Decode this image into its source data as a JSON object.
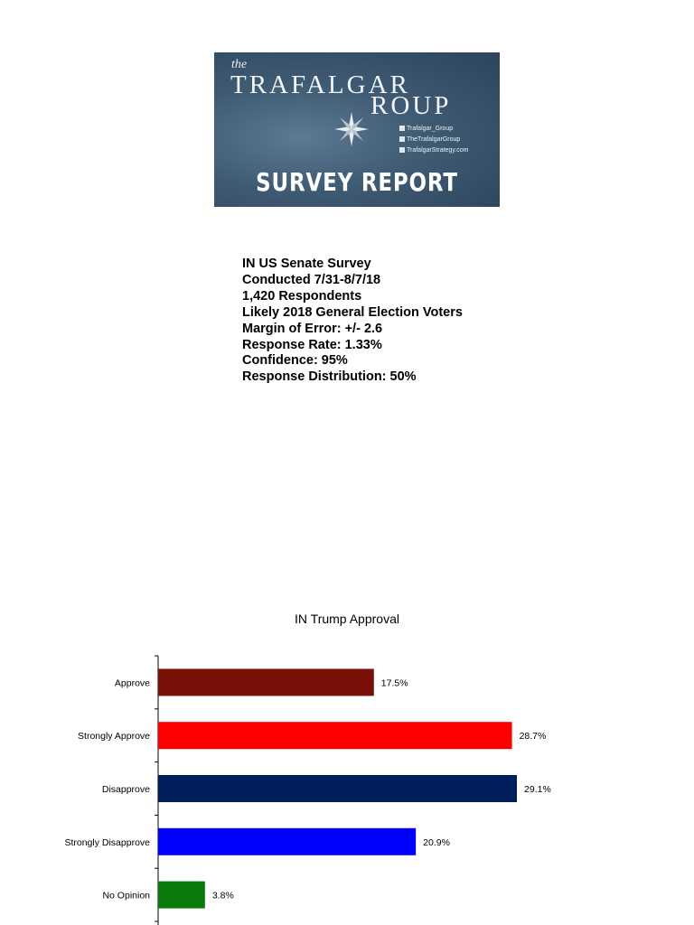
{
  "banner": {
    "the": "the",
    "brand_line1": "TRAFALGAR",
    "brand_line2": "ROUP",
    "social": [
      "Trafalgar_Group",
      "TheTrafalgarGroup",
      "TrafalgarStrategy.com"
    ],
    "report_label": "SURVEY REPORT"
  },
  "survey_info": [
    "IN US Senate Survey",
    "Conducted 7/31-8/7/18",
    "1,420 Respondents",
    "Likely 2018 General Election Voters",
    "Margin of Error: +/- 2.6",
    "Response Rate: 1.33%",
    "Confidence: 95%",
    "Response Distribution: 50%"
  ],
  "colors": {
    "approve": "#7a0f08",
    "strongly_approve": "#ff0000",
    "disapprove": "#001e5c",
    "strongly_disapprove": "#0000ff",
    "no_opinion": "#0a7a0a"
  },
  "chart_data": {
    "type": "bar",
    "orientation": "horizontal",
    "title": "IN Trump Approval",
    "categories": [
      "Approve",
      "Strongly Approve",
      "Disapprove",
      "Strongly Disapprove",
      "No Opinion"
    ],
    "values": [
      17.5,
      28.7,
      29.1,
      20.9,
      3.8
    ],
    "labels": [
      "17.5%",
      "28.7%",
      "29.1%",
      "20.9%",
      "3.8%"
    ],
    "colors": [
      "#7a0f08",
      "#ff0000",
      "#001e5c",
      "#0000ff",
      "#0a7a0a"
    ],
    "xlim": [
      0,
      35
    ],
    "legend": "none"
  }
}
